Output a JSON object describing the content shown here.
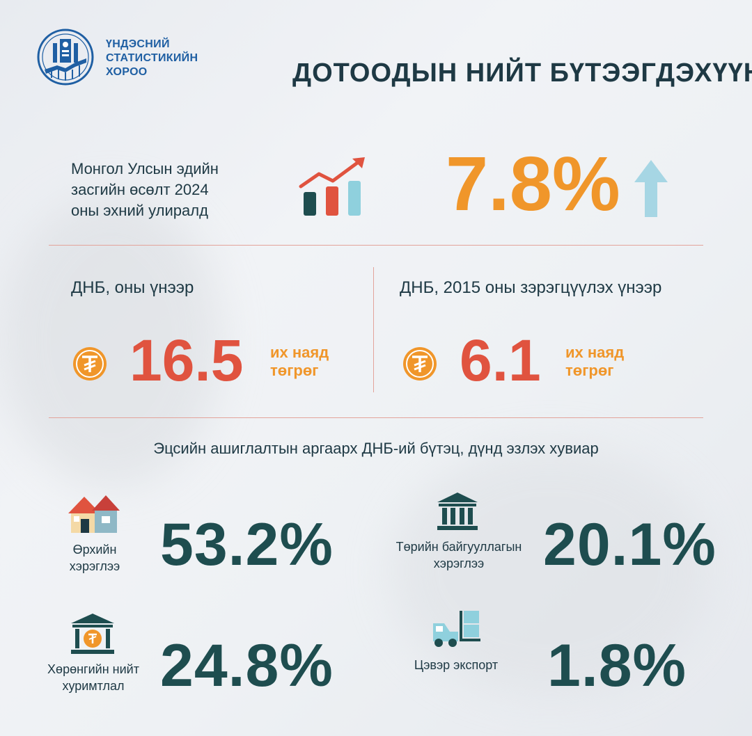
{
  "org": {
    "line1": "ҮНДЭСНИЙ",
    "line2": "СТАТИСТИКИЙН",
    "line3": "ХОРОО"
  },
  "title": "ДОТООДЫН НИЙТ БҮТЭЭГДЭХҮҮН",
  "growth": {
    "line1": "Монгол Улсын эдийн",
    "line2": "засгийн өсөлт 2024",
    "line3": "оны эхний улиралд",
    "value": "7.8%"
  },
  "gdp_current": {
    "label": "ДНБ, оны үнээр",
    "value": "16.5",
    "unit1": "их наяд",
    "unit2": "төгрөг"
  },
  "gdp_constant": {
    "label": "ДНБ, 2015 оны зэрэгцүүлэх үнээр",
    "value": "6.1",
    "unit1": "их наяд",
    "unit2": "төгрөг"
  },
  "structure": {
    "title": "Эцсийн ашиглалтын аргаарх ДНБ-ий бүтэц, дүнд эзлэх хувиар",
    "household": {
      "line1": "Өрхийн",
      "line2": "хэрэглээ",
      "value": "53.2%",
      "icon": "house-icon"
    },
    "government": {
      "line1": "Төрийн байгууллагын",
      "line2": "хэрэглээ",
      "value": "20.1%",
      "icon": "government-building-icon"
    },
    "capital": {
      "line1": "Хөрөнгийн нийт",
      "line2": "хуримтлал",
      "value": "24.8%",
      "icon": "bank-tugrik-icon"
    },
    "export": {
      "line1": "Цэвэр экспорт",
      "value": "1.8%",
      "icon": "forklift-icon"
    }
  },
  "colors": {
    "orange": "#f0962a",
    "red": "#e0533f",
    "teal": "#1e4d4f",
    "navy": "#1e3944",
    "blue": "#1f5fa3",
    "arrow": "#a6d6e4"
  }
}
